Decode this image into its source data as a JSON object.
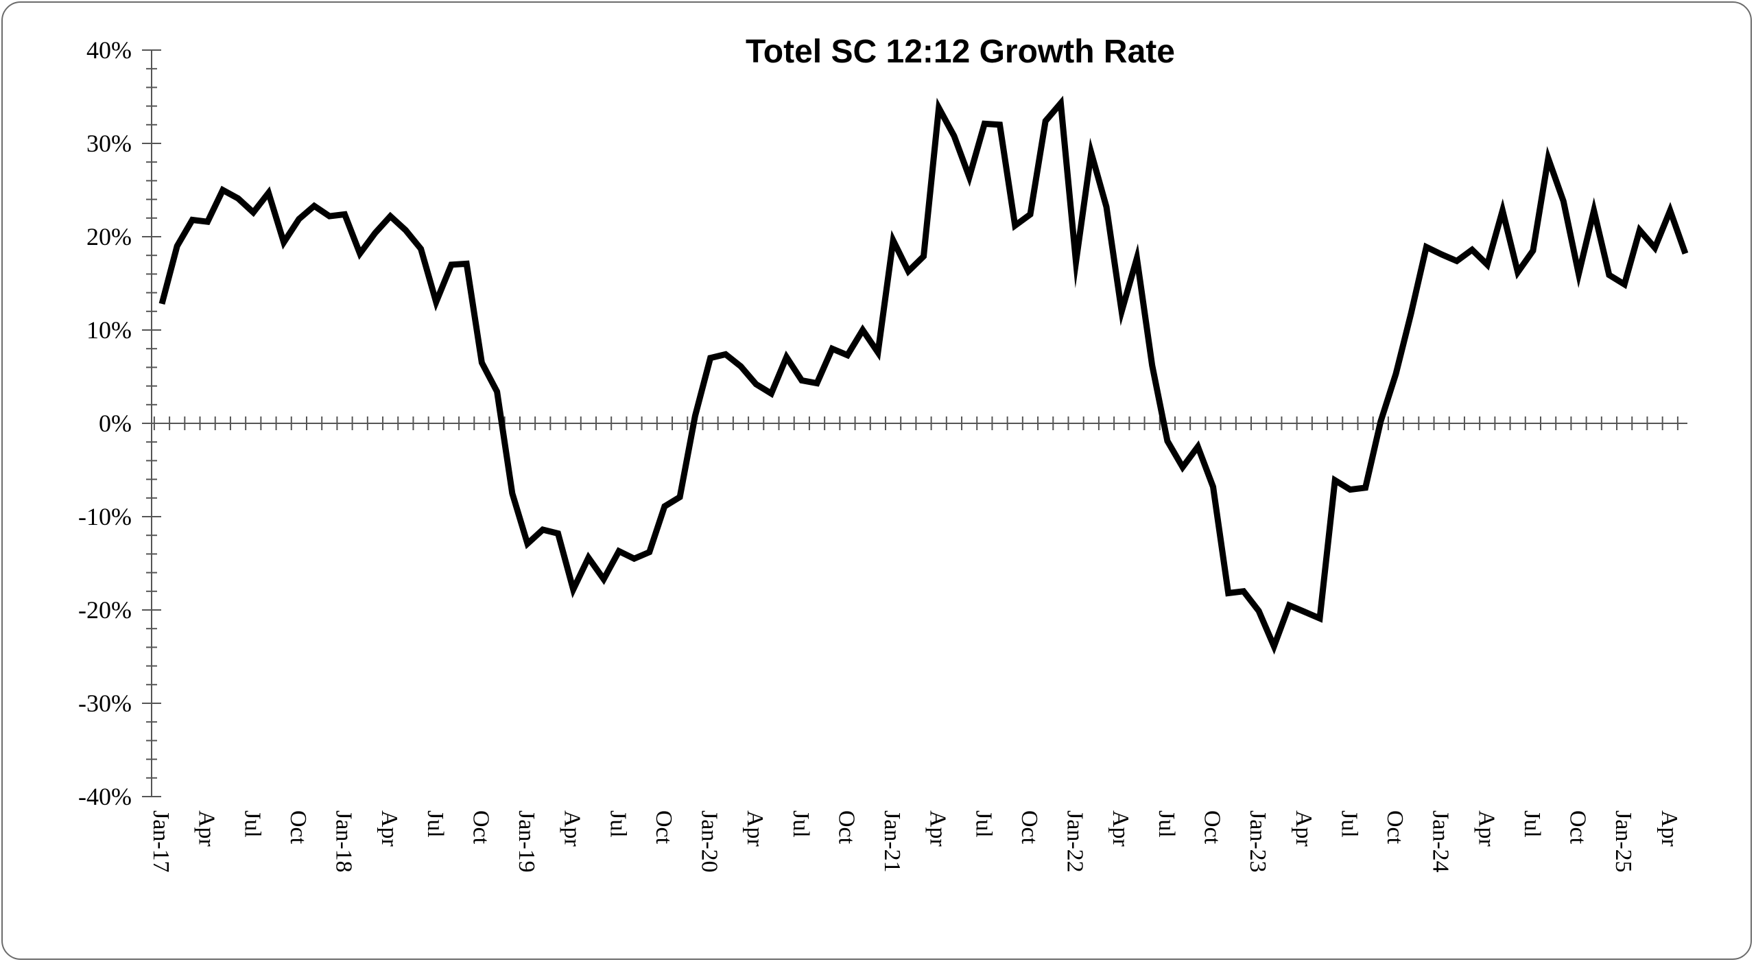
{
  "chart_data": {
    "type": "line",
    "title": "Totel SC 12:12 Growth Rate",
    "xlabel": "",
    "ylabel": "",
    "ylim": [
      -40,
      40
    ],
    "yticks": [
      "40%",
      "30%",
      "20%",
      "10%",
      "0%",
      "-10%",
      "-20%",
      "-30%",
      "-40%"
    ],
    "x_start": "Jan-17",
    "x_tick_labels": [
      {
        "index": 0,
        "label": "Jan-17"
      },
      {
        "index": 3,
        "label": "Apr"
      },
      {
        "index": 6,
        "label": "Jul"
      },
      {
        "index": 9,
        "label": "Oct"
      },
      {
        "index": 12,
        "label": "Jan-18"
      },
      {
        "index": 15,
        "label": "Apr"
      },
      {
        "index": 18,
        "label": "Jul"
      },
      {
        "index": 21,
        "label": "Oct"
      },
      {
        "index": 24,
        "label": "Jan-19"
      },
      {
        "index": 27,
        "label": "Apr"
      },
      {
        "index": 30,
        "label": "Jul"
      },
      {
        "index": 33,
        "label": "Oct"
      },
      {
        "index": 36,
        "label": "Jan-20"
      },
      {
        "index": 39,
        "label": "Apr"
      },
      {
        "index": 42,
        "label": "Jul"
      },
      {
        "index": 45,
        "label": "Oct"
      },
      {
        "index": 48,
        "label": "Jan-21"
      },
      {
        "index": 51,
        "label": "Apr"
      },
      {
        "index": 54,
        "label": "Jul"
      },
      {
        "index": 57,
        "label": "Oct"
      },
      {
        "index": 60,
        "label": "Jan-22"
      },
      {
        "index": 63,
        "label": "Apr"
      },
      {
        "index": 66,
        "label": "Jul"
      },
      {
        "index": 69,
        "label": "Oct"
      },
      {
        "index": 72,
        "label": "Jan-23"
      },
      {
        "index": 75,
        "label": "Apr"
      },
      {
        "index": 78,
        "label": "Jul"
      },
      {
        "index": 81,
        "label": "Oct"
      },
      {
        "index": 84,
        "label": "Jan-24"
      },
      {
        "index": 87,
        "label": "Apr"
      },
      {
        "index": 90,
        "label": "Jul"
      },
      {
        "index": 93,
        "label": "Oct"
      },
      {
        "index": 96,
        "label": "Jan-25"
      },
      {
        "index": 99,
        "label": "Apr"
      }
    ],
    "series": [
      {
        "values": [
          12.8,
          19.0,
          21.8,
          21.6,
          25.0,
          24.1,
          22.6,
          24.7,
          19.4,
          21.9,
          23.3,
          22.2,
          22.4,
          18.2,
          20.4,
          22.2,
          20.7,
          18.7,
          13.0,
          17.0,
          17.1,
          6.5,
          3.4,
          -7.5,
          -12.9,
          -11.4,
          -11.8,
          -17.8,
          -14.4,
          -16.7,
          -13.7,
          -14.5,
          -13.8,
          -8.9,
          -7.9,
          0.8,
          7.0,
          7.4,
          6.1,
          4.2,
          3.2,
          7.1,
          4.6,
          4.3,
          8.0,
          7.3,
          10.0,
          7.6,
          19.6,
          16.3,
          17.9,
          33.8,
          30.8,
          26.4,
          32.1,
          32.0,
          21.2,
          22.4,
          32.4,
          34.3,
          17.3,
          29.0,
          23.2,
          12.0,
          17.7,
          6.2,
          -1.9,
          -4.7,
          -2.5,
          -6.8,
          -18.2,
          -18.0,
          -20.1,
          -23.9,
          -19.5,
          -20.2,
          -20.9,
          -6.1,
          -7.1,
          -6.9,
          0.2,
          5.3,
          11.8,
          18.9,
          18.1,
          17.4,
          18.6,
          17.0,
          22.8,
          16.2,
          18.5,
          28.4,
          23.8,
          16.0,
          22.8,
          15.9,
          14.9,
          20.7,
          18.8,
          22.8,
          18.2
        ]
      }
    ],
    "grid": false,
    "legend": "none",
    "line_color": "#000000"
  }
}
